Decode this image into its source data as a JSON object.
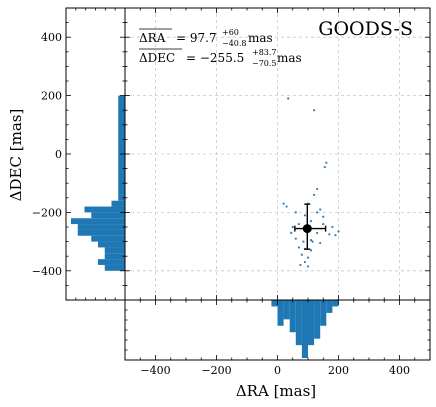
{
  "chart_data": {
    "type": "scatter",
    "field_label": "GOODS-S",
    "xlabel": "ΔRA [mas]",
    "ylabel": "ΔDEC [mas]",
    "xlim": [
      -500,
      500
    ],
    "ylim": [
      -500,
      500
    ],
    "xticks": [
      -400,
      -200,
      0,
      200,
      400
    ],
    "yticks": [
      -400,
      -200,
      0,
      200,
      400
    ],
    "xtick_labels": [
      "−400",
      "−200",
      "0",
      "200",
      "400"
    ],
    "ytick_labels": [
      "−400",
      "−200",
      "0",
      "200",
      "400"
    ],
    "grid": true,
    "annotations": {
      "ra_name": "ΔRA",
      "ra_value": "= 97.7",
      "ra_err_up": "+60",
      "ra_err_down": "−40.8",
      "ra_unit": "mas",
      "dec_name": "ΔDEC",
      "dec_value": "= −255.5",
      "dec_err_up": "+83.7",
      "dec_err_down": "−70.5",
      "dec_unit": "mas"
    },
    "points": [
      [
        35,
        190
      ],
      [
        120,
        150
      ],
      [
        160,
        -30
      ],
      [
        155,
        -45
      ],
      [
        130,
        -120
      ],
      [
        120,
        -140
      ],
      [
        100,
        -170
      ],
      [
        140,
        -190
      ],
      [
        20,
        -170
      ],
      [
        30,
        -180
      ],
      [
        60,
        -200
      ],
      [
        90,
        -210
      ],
      [
        130,
        -200
      ],
      [
        150,
        -215
      ],
      [
        70,
        -240
      ],
      [
        110,
        -230
      ],
      [
        150,
        -240
      ],
      [
        180,
        -250
      ],
      [
        200,
        -265
      ],
      [
        50,
        -250
      ],
      [
        95,
        -262
      ],
      [
        130,
        -270
      ],
      [
        170,
        -275
      ],
      [
        190,
        -278
      ],
      [
        60,
        -290
      ],
      [
        85,
        -300
      ],
      [
        110,
        -295
      ],
      [
        140,
        -305
      ],
      [
        70,
        -320
      ],
      [
        90,
        -325
      ],
      [
        110,
        -330
      ],
      [
        80,
        -345
      ],
      [
        100,
        -355
      ],
      [
        90,
        -370
      ],
      [
        75,
        -380
      ],
      [
        100,
        -385
      ],
      [
        115,
        -300
      ],
      [
        45,
        -270
      ]
    ],
    "median": {
      "x": 97.7,
      "y": -255.5,
      "x_err": [
        40.8,
        60
      ],
      "y_err": [
        70.5,
        83.7
      ]
    },
    "ra_histogram": {
      "bin_edges": [
        -20,
        0,
        20,
        40,
        60,
        80,
        100,
        120,
        140,
        160,
        180,
        200
      ],
      "counts": [
        1,
        4,
        3,
        5,
        7,
        9,
        7,
        6,
        4,
        2,
        1
      ]
    },
    "dec_histogram": {
      "bin_edges": [
        -400,
        -380,
        -360,
        -340,
        -320,
        -300,
        -280,
        -260,
        -240,
        -220,
        -200,
        -180,
        -160,
        -140,
        180,
        200
      ],
      "counts": [
        3,
        4,
        3,
        3,
        4,
        5,
        7,
        7,
        8,
        5,
        6,
        2,
        1,
        1,
        1
      ]
    },
    "colors": {
      "points": "#2c7fb8",
      "histogram": "#1f77b4",
      "median_marker": "#000000",
      "grid": "#c8c8c8"
    }
  }
}
